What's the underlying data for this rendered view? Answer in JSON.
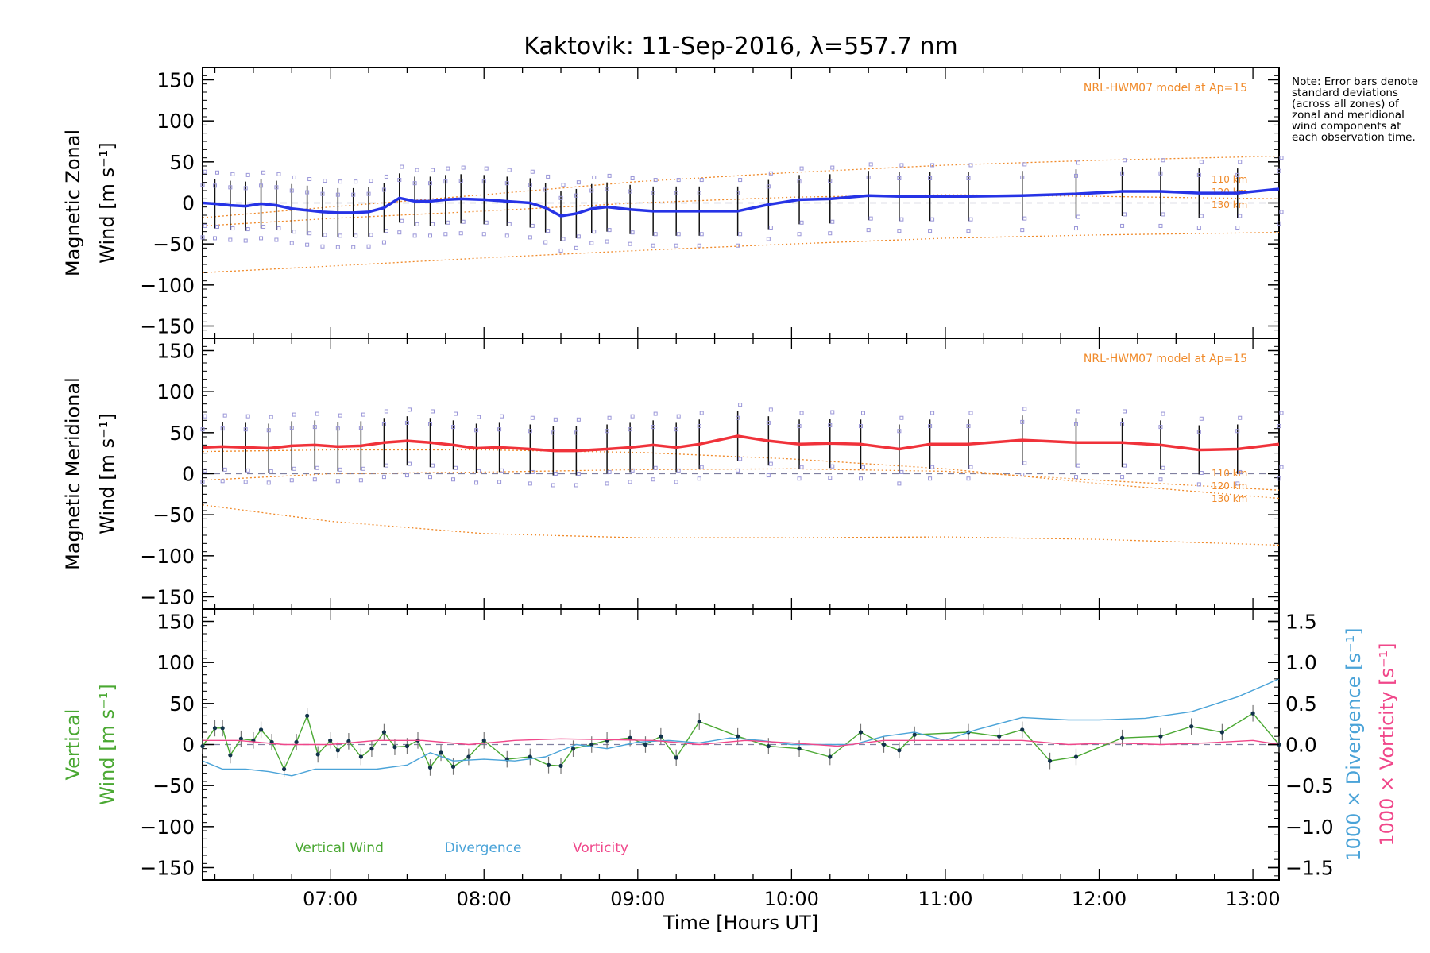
{
  "title": "Kaktovik: 11-Sep-2016, λ=557.7 nm",
  "note": "Note: Error bars denote standard deviations (across all zones) of zonal and meridional wind components at each observation time.",
  "colors": {
    "zonal": "#2633e6",
    "meridional": "#f0323a",
    "vertical": "#4aa832",
    "divergence": "#4aa3d8",
    "vorticity": "#f0478a",
    "model": "#f08a2a",
    "zero_line": "#8080a0",
    "scatter": "#9a96d8"
  },
  "chart_data": [
    {
      "type": "line",
      "panel": "zonal",
      "ylabel_line1": "Magnetic Zonal",
      "ylabel_line2": "Wind [m s⁻¹]",
      "ylim": [
        -165,
        165
      ],
      "yticks": [
        150,
        100,
        50,
        0,
        -50,
        -100,
        -150
      ],
      "model_label": "NRL-HWM07 model at Ap=15",
      "model_altitudes": [
        "110 km",
        "120 km",
        "130 km"
      ],
      "series": [
        {
          "x": [
            6.17,
            6.25,
            6.35,
            6.45,
            6.55,
            6.65,
            6.75,
            6.85,
            6.95,
            7.05,
            7.15,
            7.25,
            7.35,
            7.45,
            7.55,
            7.65,
            7.75,
            7.85,
            8.0,
            8.15,
            8.3,
            8.4,
            8.5,
            8.6,
            8.7,
            8.8,
            8.95,
            9.1,
            9.25,
            9.4,
            9.65,
            9.85,
            10.05,
            10.25,
            10.5,
            10.7,
            10.9,
            11.15,
            11.5,
            11.85,
            12.15,
            12.4,
            12.65,
            12.9,
            13.17
          ],
          "y": [
            0,
            -1,
            -3,
            -4,
            -1,
            -3,
            -7,
            -9,
            -11,
            -12,
            -12,
            -11,
            -6,
            6,
            2,
            2,
            4,
            5,
            4,
            2,
            0,
            -6,
            -16,
            -13,
            -7,
            -5,
            -8,
            -10,
            -10,
            -10,
            -10,
            -2,
            4,
            5,
            9,
            8,
            8,
            8,
            9,
            11,
            14,
            14,
            12,
            12,
            17
          ]
        }
      ],
      "model": [
        {
          "altitude": "110 km",
          "x": [
            6.17,
            7.0,
            8.0,
            9.0,
            10.0,
            11.0,
            12.0,
            13.17
          ],
          "y": [
            -28,
            -19,
            -10,
            0,
            7,
            10,
            8,
            5
          ]
        },
        {
          "altitude": "120 km",
          "x": [
            6.17,
            7.0,
            8.0,
            9.0,
            10.0,
            11.0,
            12.0,
            13.17
          ],
          "y": [
            -85,
            -77,
            -67,
            -58,
            -50,
            -43,
            -39,
            -36
          ]
        },
        {
          "altitude": "130 km",
          "x": [
            6.17,
            7.0,
            8.0,
            9.0,
            10.0,
            11.0,
            12.0,
            13.17
          ],
          "y": [
            -18,
            -5,
            10,
            26,
            37,
            46,
            52,
            57
          ]
        }
      ]
    },
    {
      "type": "line",
      "panel": "meridional",
      "ylabel_line1": "Magnetic Meridional",
      "ylabel_line2": "Wind [m s⁻¹]",
      "ylim": [
        -165,
        165
      ],
      "yticks": [
        150,
        100,
        50,
        0,
        -50,
        -100,
        -150
      ],
      "model_label": "NRL-HWM07 model at Ap=15",
      "model_altitudes": [
        "110 km",
        "120 km",
        "130 km"
      ],
      "series": [
        {
          "x": [
            6.17,
            6.3,
            6.45,
            6.6,
            6.75,
            6.9,
            7.05,
            7.2,
            7.35,
            7.5,
            7.65,
            7.8,
            7.95,
            8.1,
            8.3,
            8.45,
            8.6,
            8.8,
            8.95,
            9.1,
            9.25,
            9.4,
            9.65,
            9.85,
            10.05,
            10.25,
            10.45,
            10.7,
            10.9,
            11.15,
            11.5,
            11.85,
            12.15,
            12.4,
            12.65,
            12.9,
            13.17
          ],
          "y": [
            32,
            33,
            32,
            31,
            34,
            35,
            33,
            34,
            38,
            40,
            38,
            35,
            31,
            32,
            30,
            28,
            28,
            30,
            32,
            35,
            32,
            36,
            46,
            40,
            36,
            37,
            36,
            30,
            36,
            36,
            41,
            38,
            38,
            35,
            29,
            30,
            36
          ]
        }
      ],
      "model": [
        {
          "altitude": "110 km",
          "x": [
            6.17,
            7.0,
            8.0,
            9.0,
            10.0,
            11.0,
            12.0,
            13.17
          ],
          "y": [
            -8,
            0,
            2,
            5,
            6,
            3,
            -8,
            -20
          ]
        },
        {
          "altitude": "120 km",
          "x": [
            6.17,
            7.0,
            8.0,
            9.0,
            10.0,
            11.0,
            12.0,
            13.17
          ],
          "y": [
            -38,
            -58,
            -73,
            -78,
            -78,
            -77,
            -80,
            -87
          ]
        },
        {
          "altitude": "130 km",
          "x": [
            6.17,
            7.0,
            8.0,
            9.0,
            10.0,
            11.0,
            12.0,
            13.17
          ],
          "y": [
            27,
            29,
            29,
            26,
            18,
            6,
            -12,
            -30
          ]
        }
      ]
    },
    {
      "type": "line",
      "panel": "vertical",
      "ylabel_line1": "Vertical",
      "ylabel_line2": "Wind [m s⁻¹]",
      "ylim": [
        -165,
        165
      ],
      "yticks": [
        150,
        100,
        50,
        0,
        -50,
        -100,
        -150
      ],
      "y2lim": [
        -1.65,
        1.65
      ],
      "y2ticks": [
        "1.5",
        "1.0",
        "0.5",
        "0.0",
        "−0.5",
        "−1.0",
        "−1.5"
      ],
      "y2label_divergence": "1000 × Divergence [s⁻¹]",
      "y2label_vorticity": "1000 × Vorticity [s⁻¹]",
      "legend": [
        "Vertical Wind",
        "Divergence",
        "Vorticity"
      ],
      "series": [
        {
          "name": "Vertical Wind",
          "x": [
            6.17,
            6.25,
            6.3,
            6.35,
            6.42,
            6.5,
            6.55,
            6.62,
            6.7,
            6.78,
            6.85,
            6.92,
            7.0,
            7.05,
            7.12,
            7.2,
            7.27,
            7.35,
            7.42,
            7.5,
            7.57,
            7.65,
            7.72,
            7.8,
            7.9,
            8.0,
            8.15,
            8.3,
            8.42,
            8.5,
            8.58,
            8.7,
            8.8,
            8.95,
            9.05,
            9.15,
            9.25,
            9.4,
            9.65,
            9.85,
            10.05,
            10.25,
            10.45,
            10.6,
            10.7,
            10.8,
            11.15,
            11.35,
            11.5,
            11.68,
            11.85,
            12.15,
            12.4,
            12.6,
            12.8,
            13.0,
            13.17
          ],
          "y": [
            -2,
            20,
            20,
            -13,
            7,
            5,
            18,
            3,
            -30,
            3,
            35,
            -12,
            5,
            -7,
            4,
            -15,
            -5,
            15,
            -3,
            -2,
            5,
            -28,
            -10,
            -27,
            -15,
            5,
            -18,
            -15,
            -25,
            -26,
            -5,
            0,
            5,
            8,
            0,
            10,
            -16,
            28,
            10,
            -2,
            -5,
            -15,
            15,
            0,
            -7,
            12,
            15,
            10,
            18,
            -20,
            -15,
            8,
            10,
            22,
            15,
            38,
            0
          ]
        },
        {
          "name": "Divergence",
          "x": [
            6.17,
            6.3,
            6.45,
            6.6,
            6.75,
            6.9,
            7.1,
            7.3,
            7.5,
            7.65,
            7.8,
            8.0,
            8.2,
            8.4,
            8.6,
            8.8,
            9.0,
            9.2,
            9.4,
            9.6,
            9.8,
            10.0,
            10.2,
            10.4,
            10.6,
            10.8,
            11.0,
            11.2,
            11.5,
            11.8,
            12.0,
            12.3,
            12.6,
            12.9,
            13.17
          ],
          "y": [
            -0.2,
            -0.3,
            -0.3,
            -0.33,
            -0.38,
            -0.3,
            -0.3,
            -0.3,
            -0.25,
            -0.1,
            -0.2,
            -0.18,
            -0.2,
            -0.15,
            0.0,
            -0.05,
            0.03,
            0.05,
            0.02,
            0.08,
            0.05,
            0.0,
            0.0,
            0.0,
            0.1,
            0.15,
            0.05,
            0.18,
            0.33,
            0.3,
            0.3,
            0.32,
            0.4,
            0.58,
            0.8
          ]
        },
        {
          "name": "Vorticity",
          "x": [
            6.17,
            6.4,
            6.7,
            7.0,
            7.3,
            7.6,
            7.9,
            8.2,
            8.5,
            8.8,
            9.1,
            9.4,
            9.7,
            10.0,
            10.3,
            10.6,
            10.9,
            11.2,
            11.5,
            11.8,
            12.1,
            12.4,
            12.7,
            13.0,
            13.17
          ],
          "y": [
            0.05,
            0.05,
            0.0,
            0.0,
            0.05,
            0.05,
            0.0,
            0.05,
            0.07,
            0.06,
            0.05,
            0.0,
            0.05,
            0.02,
            -0.02,
            0.05,
            0.05,
            0.05,
            0.05,
            0.0,
            0.02,
            0.0,
            0.02,
            0.05,
            0.0
          ]
        }
      ]
    }
  ],
  "xaxis": {
    "xlim": [
      6.17,
      13.17
    ],
    "ticks": [
      {
        "value": 7,
        "label": "07:00"
      },
      {
        "value": 8,
        "label": "08:00"
      },
      {
        "value": 9,
        "label": "09:00"
      },
      {
        "value": 10,
        "label": "10:00"
      },
      {
        "value": 11,
        "label": "11:00"
      },
      {
        "value": 12,
        "label": "12:00"
      },
      {
        "value": 13,
        "label": "13:00"
      }
    ],
    "label": "Time [Hours UT]"
  }
}
